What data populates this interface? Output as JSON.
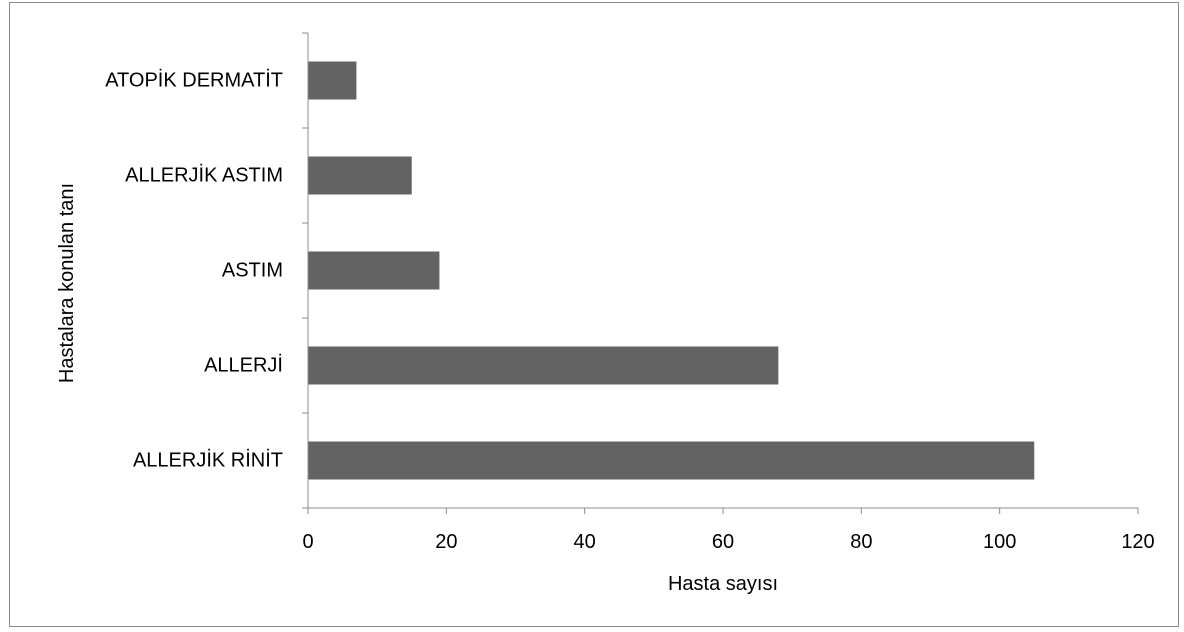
{
  "chart_data": {
    "type": "bar",
    "orientation": "horizontal",
    "categories": [
      "ALLERJİK RİNİT",
      "ALLERJİ",
      "ASTIM",
      "ALLERJİK ASTIM",
      "ATOPİK DERMATİT"
    ],
    "values": [
      105,
      68,
      19,
      15,
      7
    ],
    "xlabel": "Hasta sayısı",
    "ylabel": "Hastalara konulan tanı",
    "xlim": [
      0,
      120
    ],
    "xticks": [
      0,
      20,
      40,
      60,
      80,
      100,
      120
    ],
    "xtick_labels": [
      "0",
      "20",
      "40",
      "60",
      "80",
      "100",
      "120"
    ],
    "grid": false,
    "legend": "none",
    "bar_color": "#636363"
  }
}
